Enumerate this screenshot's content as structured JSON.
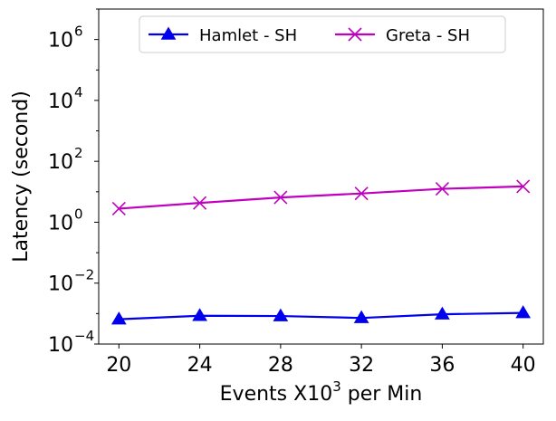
{
  "chart_data": {
    "type": "line",
    "title": "",
    "xlabel_main": "Events X10",
    "xlabel_sup": "3",
    "xlabel_rest": " per Min",
    "ylabel": "Latency (second)",
    "y_scale": "log",
    "ylim": [
      0.0001,
      10000000
    ],
    "xlim": [
      19,
      41
    ],
    "grid": false,
    "legend_position": "top-center",
    "x": [
      20,
      24,
      28,
      32,
      36,
      40
    ],
    "x_tick_labels": [
      "20",
      "24",
      "28",
      "32",
      "36",
      "40"
    ],
    "y_ticks": [
      {
        "value": 0.0001,
        "base": "10",
        "exp": "−4"
      },
      {
        "value": 0.01,
        "base": "10",
        "exp": "−2"
      },
      {
        "value": 1,
        "base": "10",
        "exp": "0"
      },
      {
        "value": 100,
        "base": "10",
        "exp": "2"
      },
      {
        "value": 10000,
        "base": "10",
        "exp": "4"
      },
      {
        "value": 1000000,
        "base": "10",
        "exp": "6"
      }
    ],
    "series": [
      {
        "name": "Hamlet - SH",
        "color": "#0000ee",
        "marker": "triangle",
        "values": [
          0.00065,
          0.00085,
          0.00083,
          0.00072,
          0.00095,
          0.00105
        ]
      },
      {
        "name": "Greta - SH",
        "color": "#bf00bf",
        "marker": "x",
        "values": [
          2.8,
          4.3,
          6.5,
          8.8,
          12.5,
          15.0
        ]
      }
    ]
  }
}
